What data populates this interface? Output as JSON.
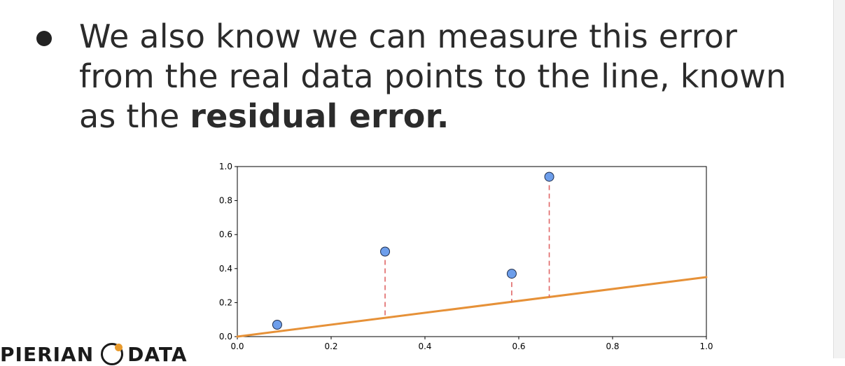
{
  "slide": {
    "bullet_prefix": "We also know we can measure this error from the real data points to the line, known as the ",
    "bullet_bold": "residual error."
  },
  "logo": {
    "left_word": "PIERIAN",
    "right_word": "DATA"
  },
  "colors": {
    "line": "#e69138",
    "points": "#6d9eeb",
    "residual": "#e06666",
    "axes": "#000000"
  },
  "chart_data": {
    "type": "scatter",
    "title": "",
    "xlabel": "",
    "ylabel": "",
    "xlim": [
      0.0,
      1.0
    ],
    "ylim": [
      0.0,
      1.0
    ],
    "xticks": [
      "0.0",
      "0.2",
      "0.4",
      "0.6",
      "0.8",
      "1.0"
    ],
    "yticks": [
      "0.0",
      "0.2",
      "0.4",
      "0.6",
      "0.8",
      "1.0"
    ],
    "grid": false,
    "points": [
      {
        "x": 0.085,
        "y": 0.07
      },
      {
        "x": 0.315,
        "y": 0.5
      },
      {
        "x": 0.585,
        "y": 0.37
      },
      {
        "x": 0.665,
        "y": 0.94
      }
    ],
    "fit_line": {
      "x": [
        0.0,
        1.0
      ],
      "y": [
        0.0,
        0.35
      ]
    }
  }
}
